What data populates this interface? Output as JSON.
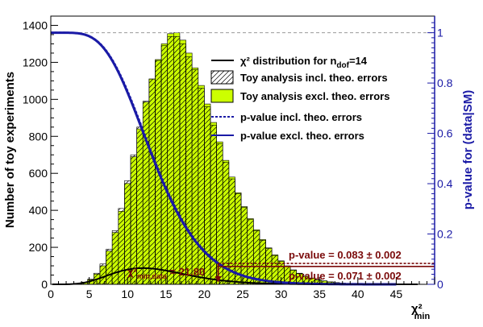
{
  "chart_data": {
    "type": "bar",
    "xlabel": "χ²",
    "xlabel_sub": "min",
    "ylabel": "Number of toy experiments",
    "ylabel_right": "p-value for (data|SM)",
    "xlim": [
      0,
      50
    ],
    "ylim": [
      0,
      1450
    ],
    "ylim_right": [
      0,
      1.066
    ],
    "x_ticks": [
      "0",
      "5",
      "10",
      "15",
      "20",
      "25",
      "30",
      "35",
      "40",
      "45"
    ],
    "y_ticks": [
      "0",
      "200",
      "400",
      "600",
      "800",
      "1000",
      "1200",
      "1400"
    ],
    "y_ticks_right": [
      "0",
      "0.2",
      "0.4",
      "0.6",
      "0.8",
      "1"
    ],
    "bin_width": 0.8,
    "bin_edges_start": 0,
    "series": [
      {
        "name": "Toy analysis incl. theo. errors",
        "style": "hatched",
        "values": [
          0,
          0,
          0,
          0,
          4,
          12,
          28,
          60,
          110,
          190,
          290,
          410,
          560,
          700,
          850,
          990,
          1110,
          1210,
          1290,
          1340,
          1340,
          1300,
          1230,
          1160,
          1060,
          960,
          860,
          760,
          660,
          570,
          490,
          415,
          350,
          290,
          238,
          194,
          156,
          124,
          98,
          76,
          58,
          44,
          33,
          24,
          18,
          13,
          9,
          6,
          4,
          3,
          2,
          1,
          1,
          0,
          0,
          0,
          0,
          0,
          0,
          0,
          0,
          0
        ]
      },
      {
        "name": "Toy analysis excl. theo. errors",
        "style": "filled",
        "color": "#ccff00",
        "values": [
          0,
          0,
          0,
          0,
          3,
          10,
          25,
          55,
          100,
          180,
          280,
          395,
          545,
          690,
          840,
          985,
          1110,
          1215,
          1300,
          1355,
          1360,
          1320,
          1250,
          1170,
          1075,
          975,
          875,
          770,
          670,
          580,
          495,
          420,
          355,
          295,
          242,
          197,
          159,
          127,
          100,
          78,
          60,
          45,
          34,
          25,
          19,
          13,
          9,
          6,
          4,
          3,
          2,
          1,
          1,
          0,
          0,
          0,
          0,
          0,
          0,
          0,
          0,
          0
        ]
      }
    ],
    "curve": {
      "name": "χ² distribution for n",
      "name_sub": "dof",
      "name_suffix": "=14",
      "ndof": 14,
      "scale": 1090
    },
    "pvalue_curves": [
      {
        "name": "p-value incl. theo. errors",
        "style": "dashed",
        "color": "#1a1aa6",
        "ndof": 14.1
      },
      {
        "name": "p-value excl. theo. errors",
        "style": "solid",
        "color": "#1a1aa6",
        "ndof": 14
      }
    ],
    "reference_line_p": 1,
    "observed": {
      "label": "χ²",
      "label_sub": "min,data",
      "label_suffix": " = 21.80",
      "x": 21.8
    },
    "pvalue_incl": {
      "label": "p-value = 0.083 ± 0.002",
      "p": 0.083
    },
    "pvalue_excl": {
      "label": "p-value = 0.071 ± 0.002",
      "p": 0.071
    },
    "legend_position": "top-right",
    "grid": false
  }
}
